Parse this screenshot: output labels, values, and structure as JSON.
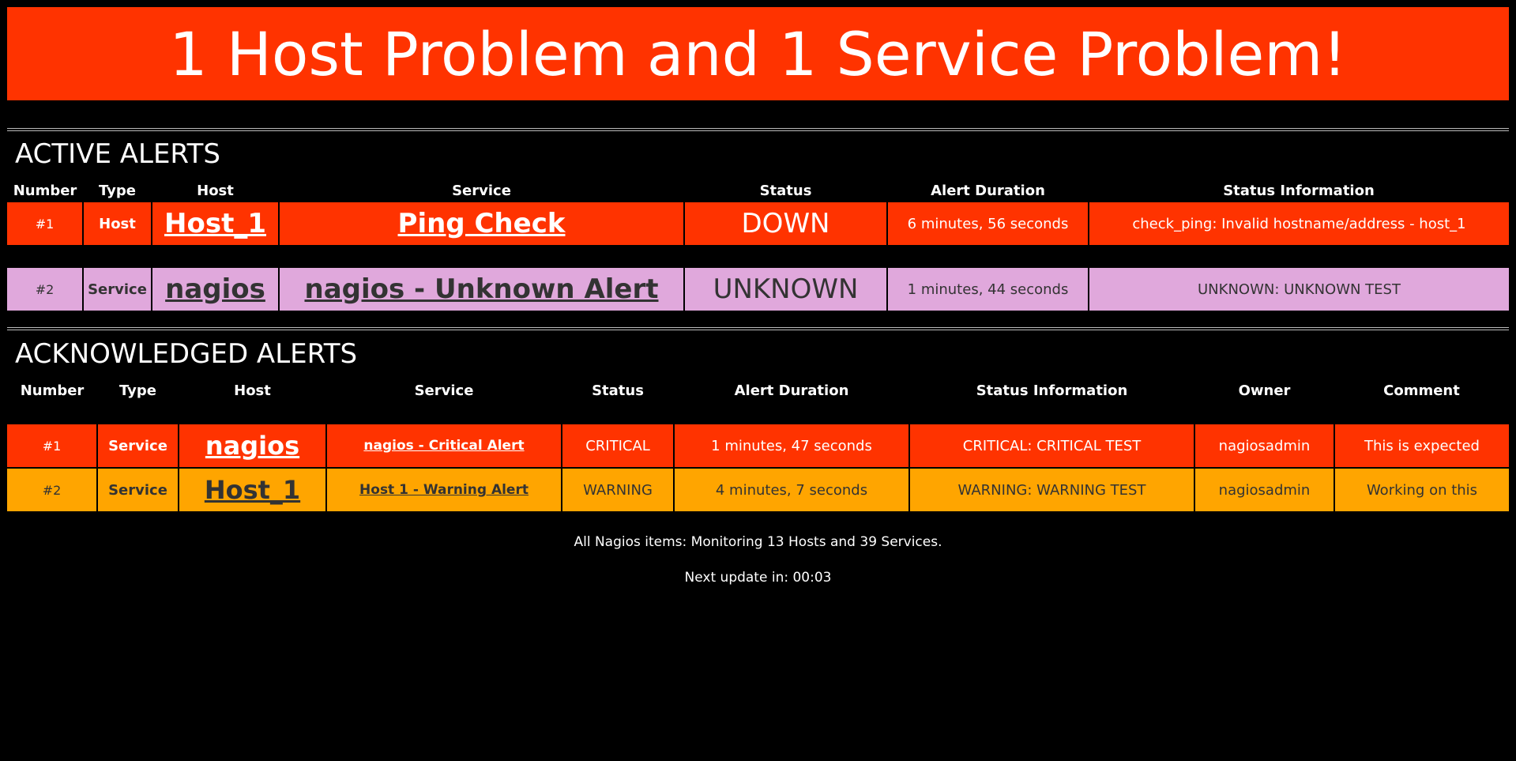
{
  "banner": {
    "title": "1 Host Problem and 1 Service Problem!",
    "color": "#ff3300"
  },
  "active": {
    "title": "ACTIVE ALERTS",
    "headers": [
      "Number",
      "Type",
      "Host",
      "Service",
      "Status",
      "Alert Duration",
      "Status Information"
    ],
    "rows": [
      {
        "number": "#1",
        "type": "Host",
        "host": "Host_1",
        "service": "Ping Check",
        "status": "DOWN",
        "duration": "6 minutes, 56 seconds",
        "info": "check_ping: Invalid hostname/address - host_1",
        "color": "#ff3300"
      },
      {
        "number": "#2",
        "type": "Service",
        "host": "nagios",
        "service": "nagios - Unknown Alert",
        "status": "UNKNOWN",
        "duration": "1 minutes, 44 seconds",
        "info": "UNKNOWN: UNKNOWN TEST",
        "color": "#e0a8dc"
      }
    ]
  },
  "acknowledged": {
    "title": "ACKNOWLEDGED ALERTS",
    "headers": [
      "Number",
      "Type",
      "Host",
      "Service",
      "Status",
      "Alert Duration",
      "Status Information",
      "Owner",
      "Comment"
    ],
    "rows": [
      {
        "number": "#1",
        "type": "Service",
        "host": "nagios",
        "service": "nagios - Critical Alert",
        "status": "CRITICAL",
        "duration": "1 minutes, 47 seconds",
        "info": "CRITICAL: CRITICAL TEST",
        "owner": "nagiosadmin",
        "comment": "This is expected",
        "color": "#ff3300"
      },
      {
        "number": "#2",
        "type": "Service",
        "host": "Host_1",
        "service": "Host 1 - Warning Alert",
        "status": "WARNING",
        "duration": "4 minutes, 7 seconds",
        "info": "WARNING: WARNING TEST",
        "owner": "nagiosadmin",
        "comment": "Working on this",
        "color": "#ffa500"
      }
    ]
  },
  "footer": {
    "summary": "All Nagios items: Monitoring 13 Hosts and 39 Services.",
    "next_update": "Next update in: 00:03"
  }
}
